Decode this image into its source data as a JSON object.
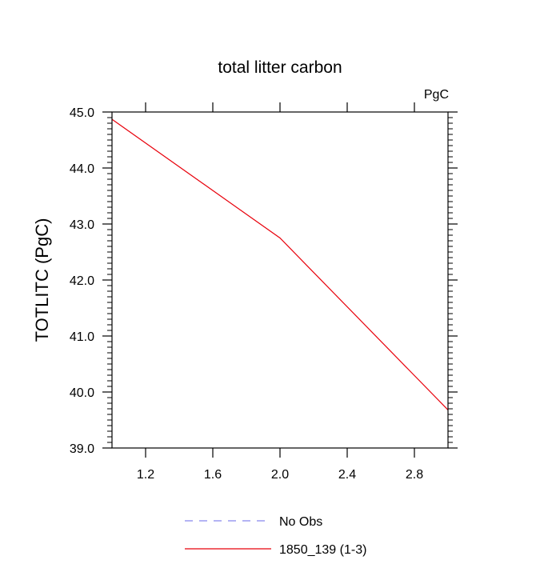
{
  "chart_data": {
    "type": "line",
    "title": "total litter carbon",
    "units_label": "PgC",
    "xlabel": "",
    "ylabel": "TOTLITC  (PgC)",
    "xlim": [
      1.0,
      3.0
    ],
    "ylim": [
      39.0,
      45.0
    ],
    "x_ticks": [
      1.2,
      1.6,
      2.0,
      2.4,
      2.8
    ],
    "x_tick_labels": [
      "1.2",
      "1.6",
      "2.0",
      "2.4",
      "2.8"
    ],
    "y_ticks": [
      39.0,
      40.0,
      41.0,
      42.0,
      43.0,
      44.0,
      45.0
    ],
    "y_tick_labels": [
      "39.0",
      "40.0",
      "41.0",
      "42.0",
      "43.0",
      "44.0",
      "45.0"
    ],
    "grid": false,
    "legend_position": "bottom",
    "series": [
      {
        "name": "No Obs",
        "color": "#8888ee",
        "dashed": true,
        "x": [],
        "values": []
      },
      {
        "name": "1850_139 (1-3)",
        "color": "#e8000b",
        "dashed": false,
        "x": [
          1.0,
          2.0,
          3.0
        ],
        "values": [
          44.87,
          42.75,
          39.68
        ]
      }
    ]
  }
}
